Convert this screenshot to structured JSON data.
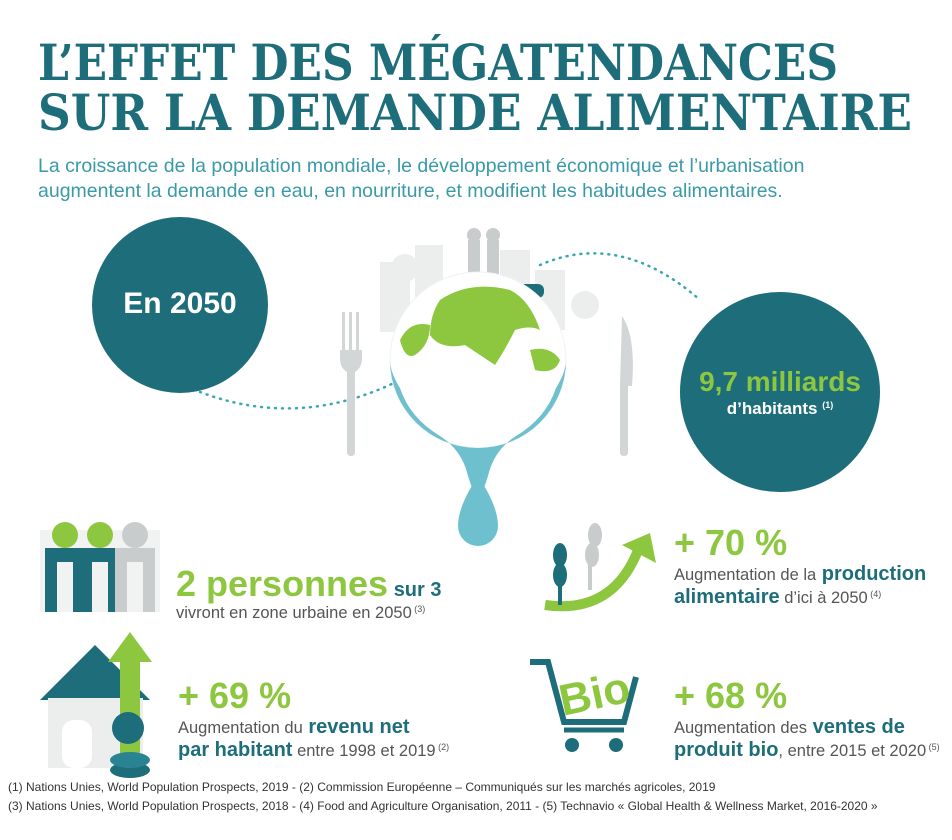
{
  "header": {
    "title": [
      "L’EFFET DES MÉGATENDANCES",
      "SUR LA DEMANDE ALIMENTAIRE"
    ],
    "subtitle": [
      "La croissance de la population mondiale, le développement économique et l’urbanisation",
      "augmentent la demande en eau, en nourriture, et modifient les habitudes alimentaires."
    ]
  },
  "hero": {
    "year": "En 2050",
    "population": "9,7 milliards",
    "unit": "d’habitants",
    "note": "(1)"
  },
  "stats": [
    {
      "lines": [
        [
          {
            "text": "2 personnes",
            "style": "big"
          },
          {
            "text": "sur 3",
            "style": "strong"
          }
        ],
        [
          {
            "text": "vivront en zone urbaine en 2050",
            "style": "plain"
          },
          {
            "text": "(3)",
            "style": "note"
          }
        ]
      ]
    },
    {
      "lines": [
        [
          {
            "text": "+ 70 %",
            "style": "big"
          }
        ],
        [
          {
            "text": "Augmentation de la",
            "style": "plain"
          },
          {
            "text": "production",
            "style": "strong"
          }
        ],
        [
          {
            "text": "alimentaire",
            "style": "strong"
          },
          {
            "text": "d’ici à 2050",
            "style": "plain"
          },
          {
            "text": "(4)",
            "style": "note"
          }
        ]
      ]
    },
    {
      "lines": [
        [
          {
            "text": "+ 69 %",
            "style": "big"
          }
        ],
        [
          {
            "text": "Augmentation du",
            "style": "plain"
          },
          {
            "text": "revenu net",
            "style": "strong"
          }
        ],
        [
          {
            "text": "par habitant",
            "style": "strong"
          },
          {
            "text": "entre 1998 et 2019",
            "style": "plain"
          },
          {
            "text": "(2)",
            "style": "note"
          }
        ]
      ]
    },
    {
      "lines": [
        [
          {
            "text": "+ 68 %",
            "style": "big"
          }
        ],
        [
          {
            "text": "Augmentation des",
            "style": "plain"
          },
          {
            "text": "ventes de",
            "style": "strong"
          }
        ],
        [
          {
            "text": "produit bio",
            "style": "strong"
          },
          {
            "text": ", entre 2015 et 2020",
            "style": "plain"
          },
          {
            "text": "(5)",
            "style": "note"
          }
        ]
      ]
    }
  ],
  "cart_label": "Bio",
  "footnotes": [
    "(1) Nations Unies, World Population Prospects, 2019 - (2) Commission Européenne – Communiqués sur les marchés agricoles, 2019",
    "(3) Nations Unies, World Population Prospects, 2018 - (4) Food and Agriculture Organisation, 2011 - (5) Technavio « Global Health & Wellness Market, 2016-2020 »"
  ]
}
